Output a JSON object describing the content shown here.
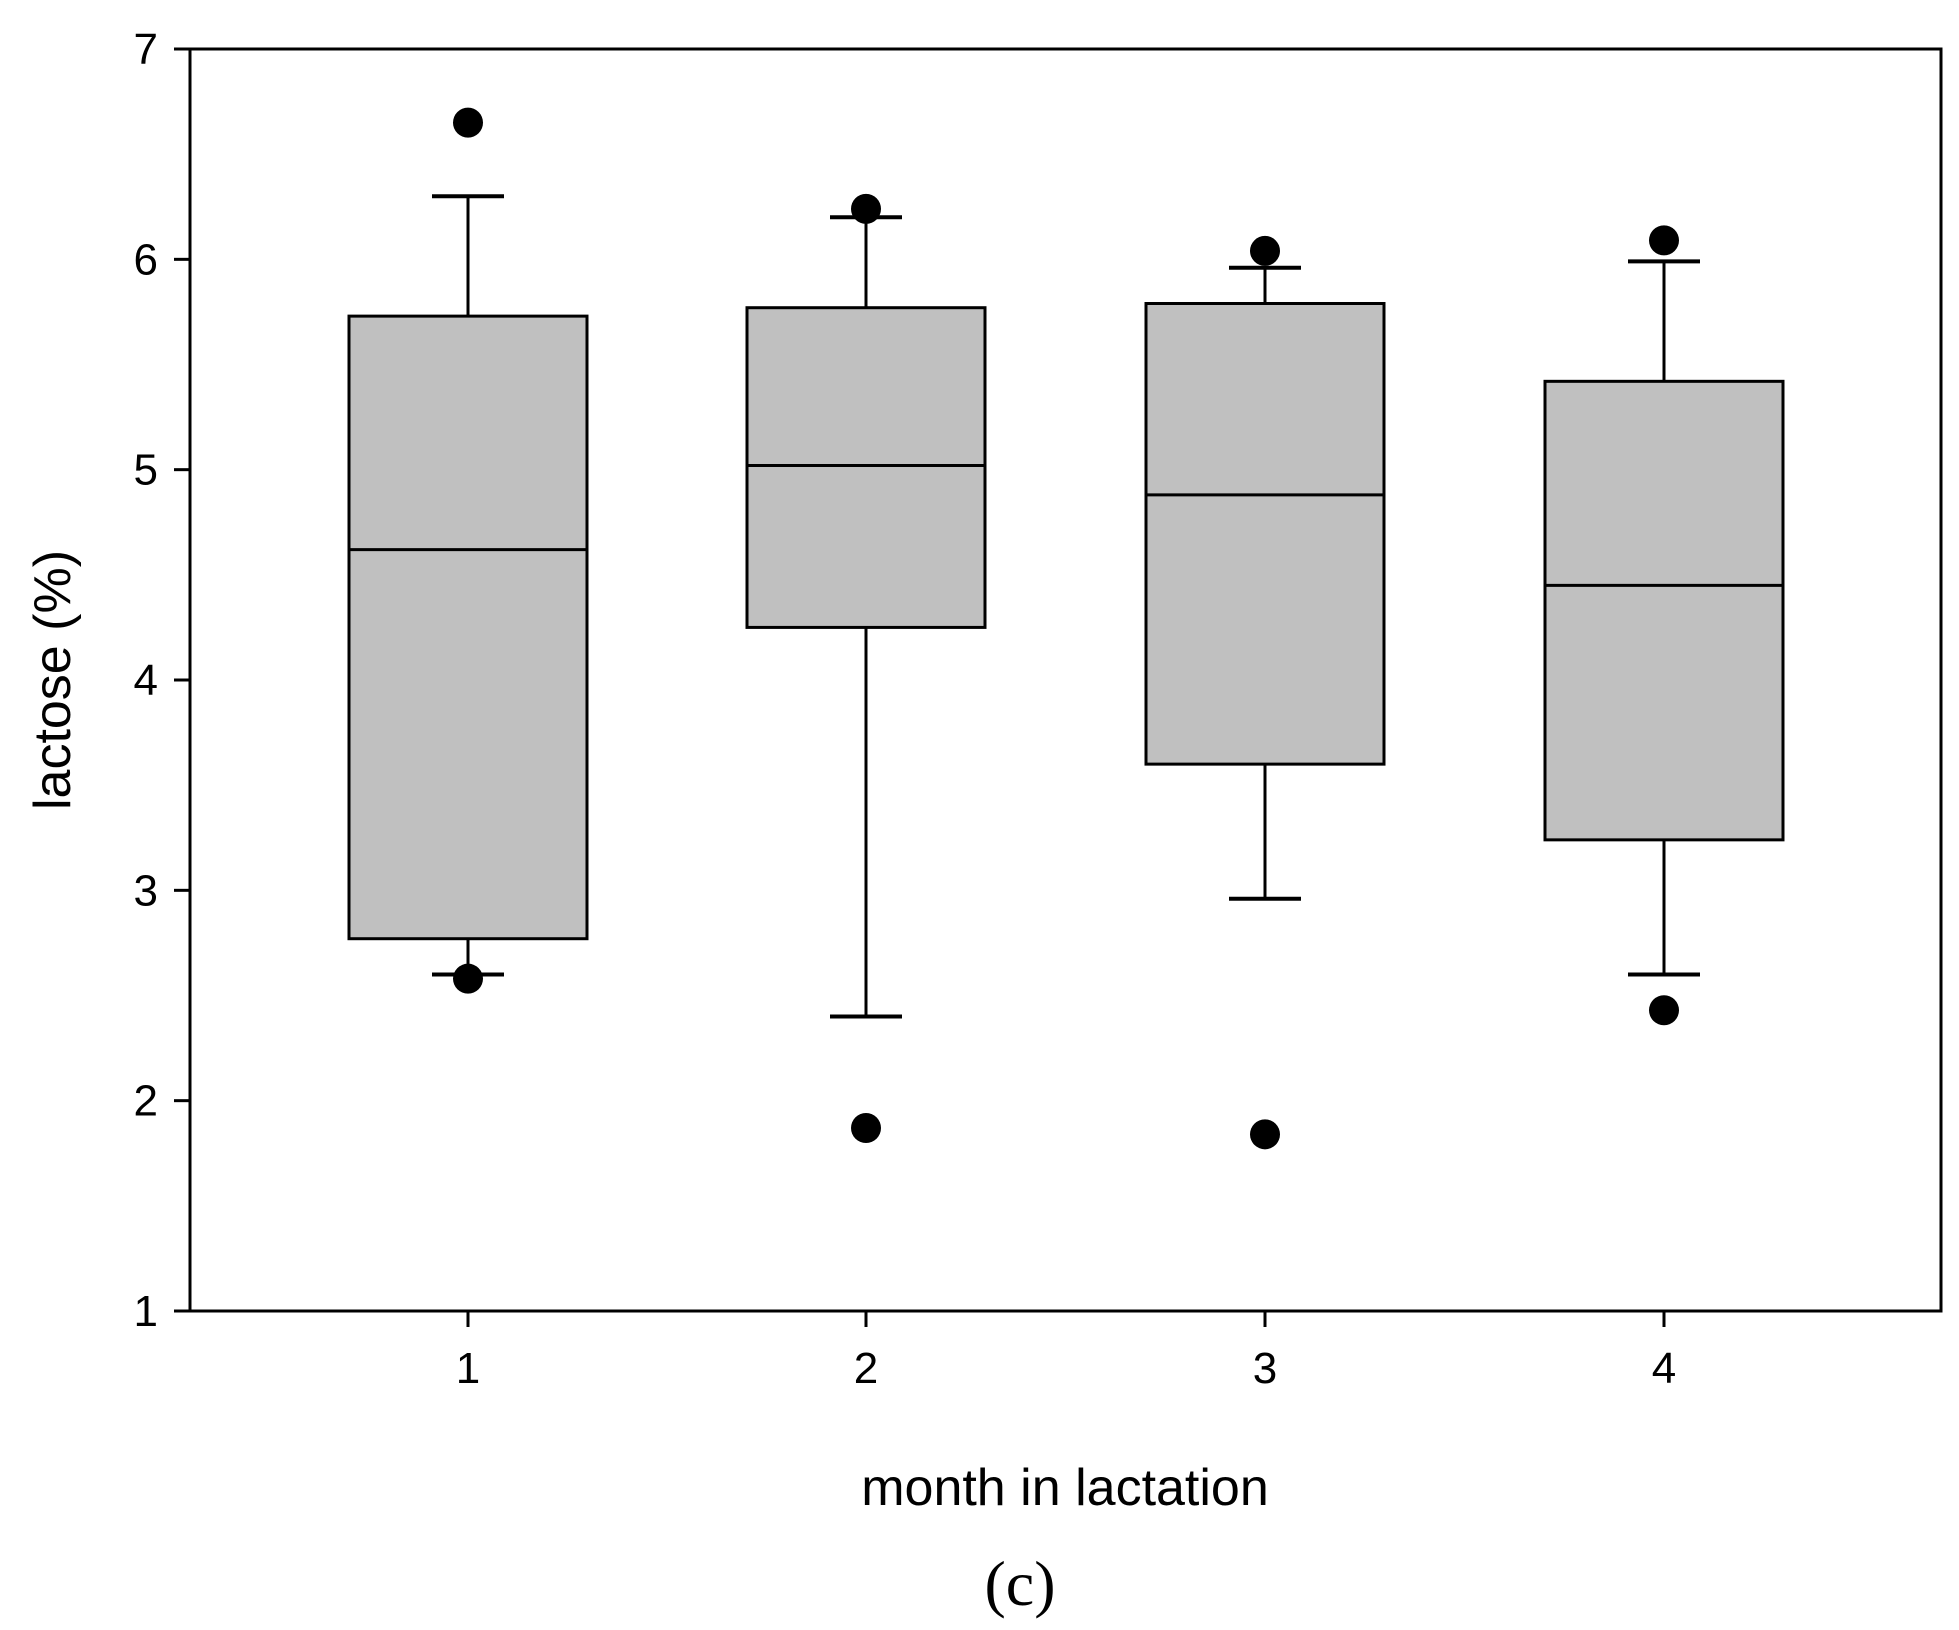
{
  "chart_data": {
    "type": "box",
    "title": "",
    "panel_label": "(c)",
    "xlabel": "month in lactation",
    "ylabel": "lactose (%)",
    "ylim": [
      1,
      7
    ],
    "yticks": [
      "1",
      "2",
      "3",
      "4",
      "5",
      "6",
      "7"
    ],
    "categories": [
      "1",
      "2",
      "3",
      "4"
    ],
    "grid": false,
    "legend": "none",
    "colors": {
      "box_fill": "#c0c0c0",
      "line": "#000000",
      "outlier": "#000000"
    },
    "boxes": [
      {
        "category": "1",
        "whisker_low": 2.6,
        "q1": 2.77,
        "median": 4.62,
        "q3": 5.73,
        "whisker_high": 6.3,
        "outliers": [
          6.65,
          2.58
        ]
      },
      {
        "category": "2",
        "whisker_low": 2.4,
        "q1": 4.25,
        "median": 5.02,
        "q3": 5.77,
        "whisker_high": 6.2,
        "outliers": [
          6.24,
          1.87
        ]
      },
      {
        "category": "3",
        "whisker_low": 2.96,
        "q1": 3.6,
        "median": 4.88,
        "q3": 5.79,
        "whisker_high": 5.96,
        "outliers": [
          6.04,
          1.84
        ]
      },
      {
        "category": "4",
        "whisker_low": 2.6,
        "q1": 3.24,
        "median": 4.45,
        "q3": 5.42,
        "whisker_high": 5.99,
        "outliers": [
          6.09,
          2.43
        ]
      }
    ]
  }
}
